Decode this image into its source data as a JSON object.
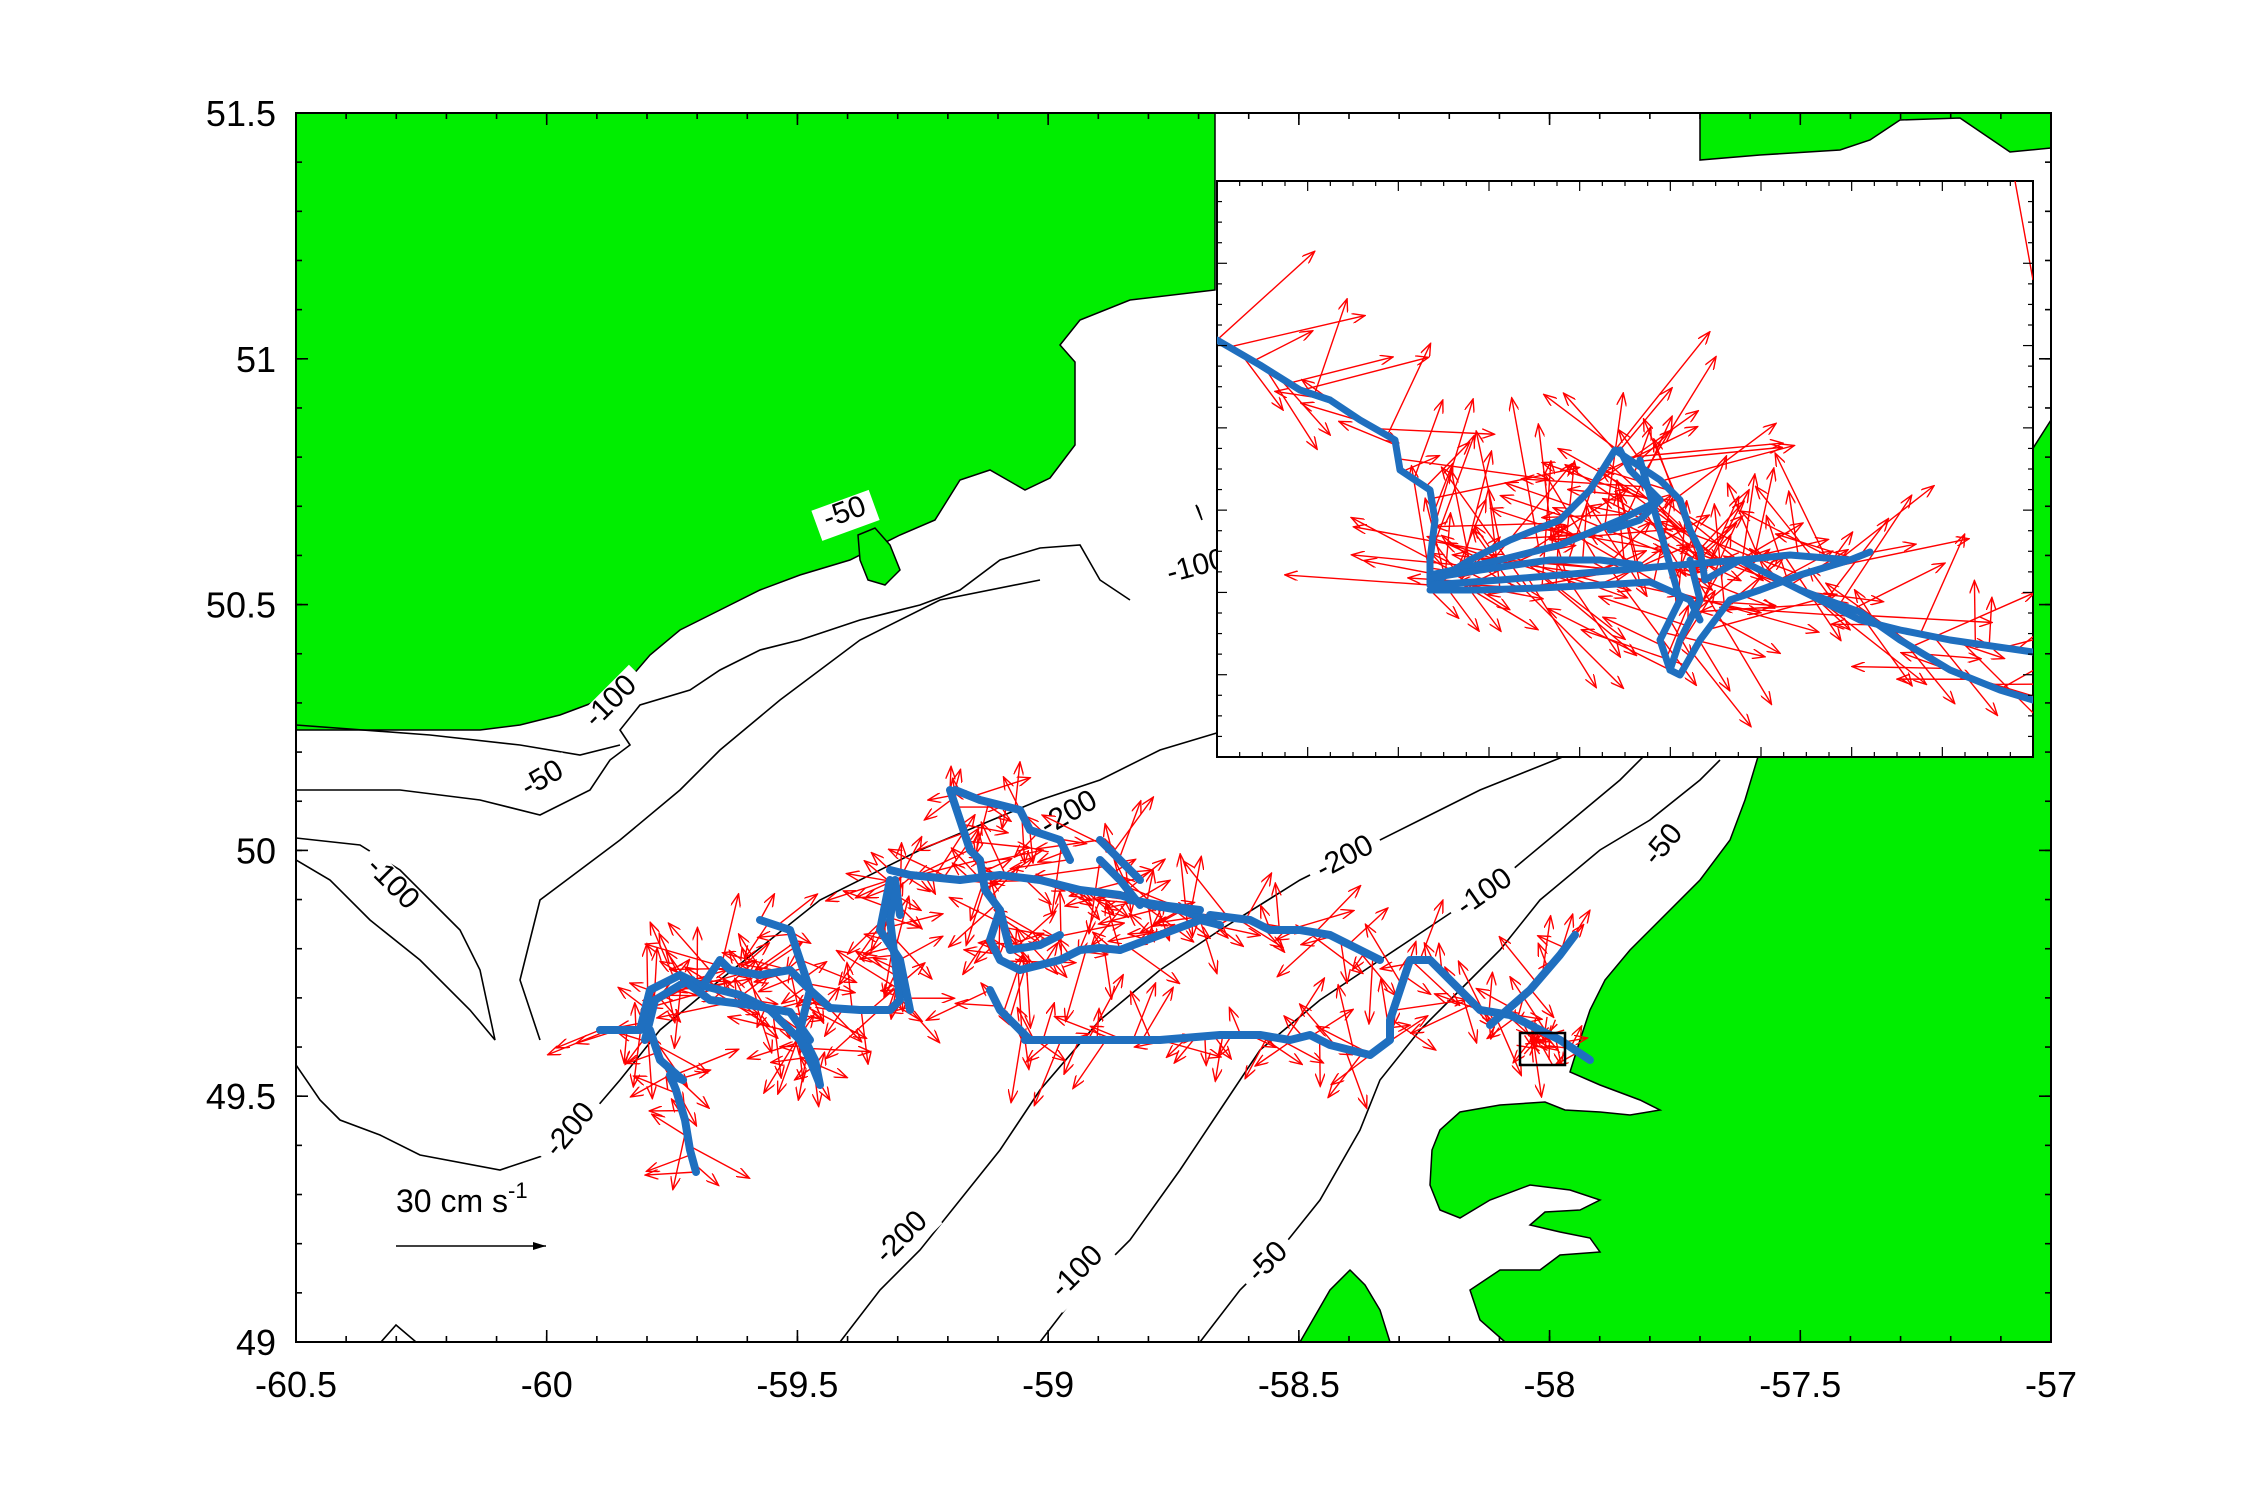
{
  "map": {
    "x_ticks": [
      "-60.5",
      "-60",
      "-59.5",
      "-59",
      "-58.5",
      "-58",
      "-57.5",
      "-57"
    ],
    "y_ticks": [
      "49",
      "49.5",
      "50",
      "50.5",
      "51",
      "51.5"
    ],
    "x_range": [
      -60.5,
      -57
    ],
    "y_range": [
      49,
      51.5
    ],
    "colors": {
      "land": "#00ee00",
      "track": "#1f6fbf",
      "vector": "#ff0000",
      "contour": "#000000"
    },
    "contour_labels": [
      {
        "text": "-50",
        "lon": -60.0,
        "lat": 50.13,
        "angle": -30
      },
      {
        "text": "-100",
        "lon": -59.86,
        "lat": 50.29,
        "angle": -45
      },
      {
        "text": "-50",
        "lon": -59.4,
        "lat": 50.67,
        "angle": -20
      },
      {
        "text": "-100",
        "lon": -58.7,
        "lat": 50.56,
        "angle": -15
      },
      {
        "text": "-100",
        "lon": -60.32,
        "lat": 49.92,
        "angle": 45
      },
      {
        "text": "-200",
        "lon": -58.95,
        "lat": 50.06,
        "angle": -30
      },
      {
        "text": "-200",
        "lon": -58.4,
        "lat": 49.97,
        "angle": -28
      },
      {
        "text": "-100",
        "lon": -58.12,
        "lat": 49.9,
        "angle": -35
      },
      {
        "text": "-50",
        "lon": -57.76,
        "lat": 50.0,
        "angle": -50
      },
      {
        "text": "-200",
        "lon": -59.94,
        "lat": 49.42,
        "angle": -50
      },
      {
        "text": "-200",
        "lon": -59.28,
        "lat": 49.2,
        "angle": -45
      },
      {
        "text": "-100",
        "lon": -58.93,
        "lat": 49.13,
        "angle": -45
      },
      {
        "text": "-50",
        "lon": -58.55,
        "lat": 49.15,
        "angle": -45
      }
    ],
    "scale": {
      "label": "30 cm s",
      "superscript": "-1",
      "speed_cm_s": 30
    },
    "inset_box_center": {
      "lon": -58.02,
      "lat": 49.61
    }
  }
}
